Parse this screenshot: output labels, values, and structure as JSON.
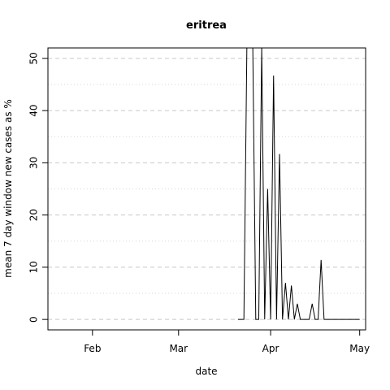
{
  "chart_data": {
    "type": "line",
    "title": "eritrea",
    "xlabel": "date",
    "ylabel": "mean  7  day window new cases as %",
    "x_ticks": [
      {
        "date": "2020-02-01",
        "label": "Feb"
      },
      {
        "date": "2020-03-01",
        "label": "Mar"
      },
      {
        "date": "2020-04-01",
        "label": "Apr"
      },
      {
        "date": "2020-05-01",
        "label": "May"
      }
    ],
    "y_ticks": [
      0,
      10,
      20,
      30,
      40,
      50
    ],
    "y_minor_ticks": [
      5,
      15,
      25,
      35,
      45
    ],
    "xlim": [
      "2020-01-17",
      "2020-05-03"
    ],
    "ylim": [
      -2,
      52
    ],
    "grid": true,
    "series": [
      {
        "values": [
          {
            "x": "2020-03-21",
            "y": 0
          },
          {
            "x": "2020-03-23",
            "y": 0
          },
          {
            "x": "2020-03-24",
            "y": 52
          },
          {
            "x": "2020-03-26",
            "y": 52
          },
          {
            "x": "2020-03-27",
            "y": 0
          },
          {
            "x": "2020-03-28",
            "y": 0
          },
          {
            "x": "2020-03-29",
            "y": 52
          },
          {
            "x": "2020-03-30",
            "y": 0
          },
          {
            "x": "2020-03-31",
            "y": 25
          },
          {
            "x": "2020-04-01",
            "y": 0
          },
          {
            "x": "2020-04-02",
            "y": 46.7
          },
          {
            "x": "2020-04-03",
            "y": 0
          },
          {
            "x": "2020-04-04",
            "y": 31.7
          },
          {
            "x": "2020-04-05",
            "y": 0
          },
          {
            "x": "2020-04-06",
            "y": 7
          },
          {
            "x": "2020-04-07",
            "y": 0
          },
          {
            "x": "2020-04-08",
            "y": 6.5
          },
          {
            "x": "2020-04-09",
            "y": 0
          },
          {
            "x": "2020-04-10",
            "y": 3
          },
          {
            "x": "2020-04-11",
            "y": 0
          },
          {
            "x": "2020-04-14",
            "y": 0
          },
          {
            "x": "2020-04-15",
            "y": 3
          },
          {
            "x": "2020-04-16",
            "y": 0
          },
          {
            "x": "2020-04-17",
            "y": 0
          },
          {
            "x": "2020-04-18",
            "y": 11.4
          },
          {
            "x": "2020-04-19",
            "y": 0
          },
          {
            "x": "2020-05-01",
            "y": 0
          }
        ]
      }
    ],
    "colors": {
      "line": "#000000",
      "grid": "#c8c8c8",
      "background": "#ffffff"
    }
  }
}
